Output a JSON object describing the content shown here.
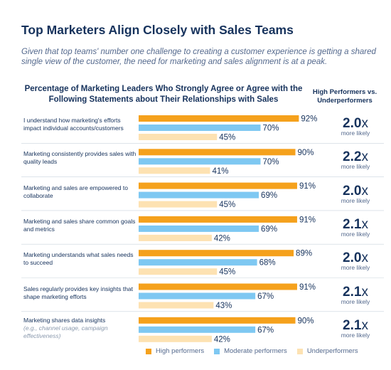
{
  "title": "Top Marketers Align Closely with Sales Teams",
  "subtitle": "Given that top teams' number one challenge to creating a customer experience is getting a shared single view of the customer, the need for marketing and sales alignment is at a peak.",
  "chart_title": "Percentage of Marketing Leaders Who Strongly Agree or Agree with the Following Statements about Their Relationships with Sales",
  "ratio_header": "High Performers vs. Underperformers",
  "more_likely_label": "more likely",
  "colors": {
    "high": "#f5a11c",
    "moderate": "#7ec8f2",
    "under": "#fde2b2",
    "text": "#16325c",
    "divider": "#c9d3de"
  },
  "chart_data": {
    "type": "bar",
    "orientation": "horizontal",
    "xlim": [
      0,
      100
    ],
    "categories": [
      {
        "label": "I understand how marketing's efforts impact individual accounts/customers",
        "note": ""
      },
      {
        "label": "Marketing consistently provides sales with quality leads",
        "note": ""
      },
      {
        "label": "Marketing and sales are empowered to collaborate",
        "note": ""
      },
      {
        "label": "Marketing and sales share common goals and metrics",
        "note": ""
      },
      {
        "label": "Marketing understands what sales needs to succeed",
        "note": ""
      },
      {
        "label": "Sales regularly provides key insights that shape marketing efforts",
        "note": ""
      },
      {
        "label": "Marketing shares data insights",
        "note": "(e.g., channel usage, campaign effectiveness)"
      }
    ],
    "series": [
      {
        "name": "High performers",
        "key": "high",
        "values": [
          92,
          90,
          91,
          91,
          89,
          91,
          90
        ]
      },
      {
        "name": "Moderate performers",
        "key": "moderate",
        "values": [
          70,
          70,
          69,
          69,
          68,
          67,
          67
        ]
      },
      {
        "name": "Underperformers",
        "key": "under",
        "values": [
          45,
          41,
          45,
          42,
          45,
          43,
          42
        ]
      }
    ],
    "ratios": [
      "2.0",
      "2.2",
      "2.0",
      "2.1",
      "2.0",
      "2.1",
      "2.1"
    ],
    "ratio_suffix": "x"
  }
}
